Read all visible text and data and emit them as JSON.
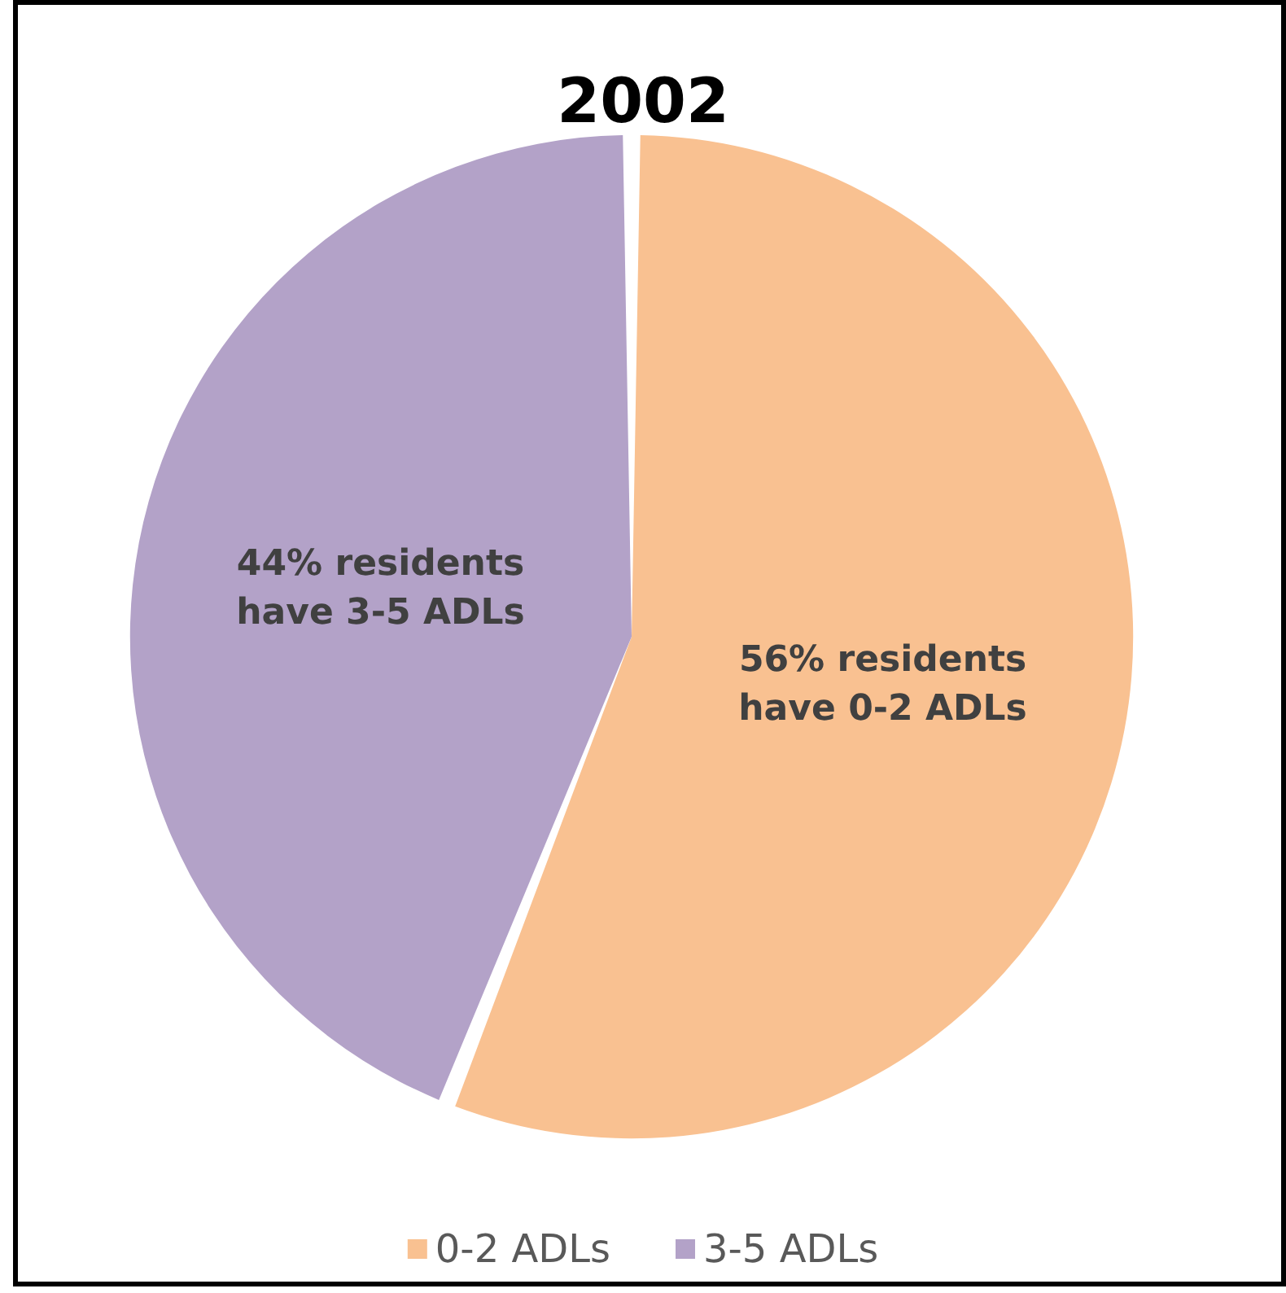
{
  "chart_data": {
    "type": "pie",
    "title": "2002",
    "categories": [
      "0-2 ADLs",
      "3-5 ADLs"
    ],
    "values": [
      56,
      44
    ],
    "colors": [
      "#f9c191",
      "#b3a2c8"
    ],
    "value_labels": [
      "56% residents\nhave 0-2 ADLs",
      "44% residents\nhave 3-5 ADLs"
    ],
    "legend": "bottom"
  }
}
